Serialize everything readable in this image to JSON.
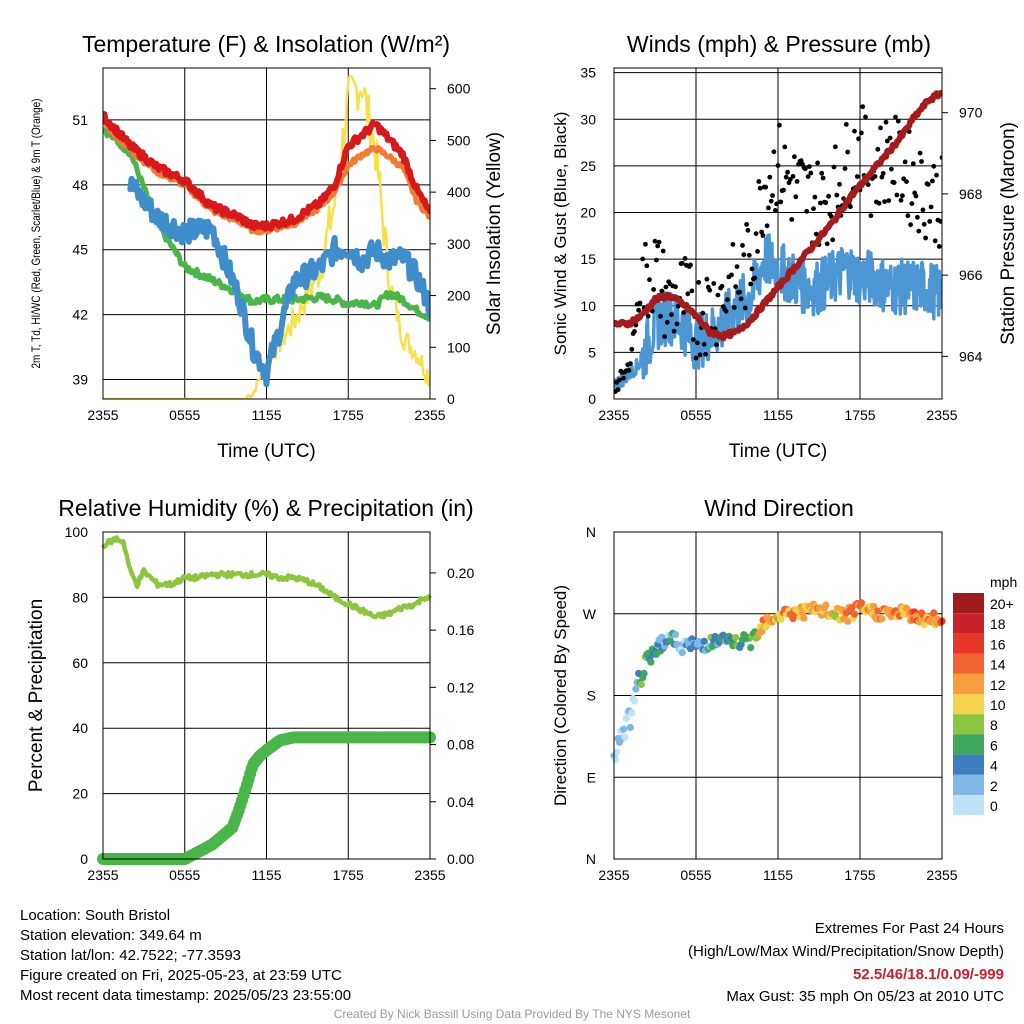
{
  "chart_data": [
    {
      "type": "line",
      "title": "Temperature (F) & Insolation (W/m²)",
      "xlabel": "Time (UTC)",
      "ylabel_left": "2m T, Td, HI/WC (Red, Green, Scarlet/Blue) & 9m T (Orange)",
      "ylabel_right": "Solar Insolation (Yellow)",
      "x_ticks": [
        "2355",
        "0555",
        "1155",
        "1755",
        "2355"
      ],
      "y_ticks_left": [
        "39",
        "42",
        "45",
        "48",
        "51"
      ],
      "y_ticks_right": [
        "0",
        "100",
        "200",
        "300",
        "400",
        "500",
        "600"
      ],
      "ylim_left": [
        38.1,
        53.4
      ],
      "ylim_right": [
        0,
        640
      ],
      "grid": true,
      "colors": {
        "temp": "#d7191c",
        "temp9m": "#f47b34",
        "dewpoint": "#4ab548",
        "windchill": "#3f8ecb",
        "solar": "#f5e14a"
      },
      "x_hours": [
        0,
        2,
        4,
        6,
        8,
        10,
        11,
        12,
        14,
        16,
        17,
        18,
        19,
        20,
        21,
        22,
        23,
        24
      ],
      "series": [
        {
          "key": "temp",
          "values": [
            51.2,
            49.8,
            48.8,
            48.2,
            47.0,
            46.5,
            46.1,
            46.1,
            46.4,
            47.2,
            48.0,
            49.8,
            50.3,
            50.8,
            50.1,
            49.4,
            47.8,
            46.7
          ]
        },
        {
          "key": "temp9m",
          "values": [
            50.9,
            49.6,
            48.6,
            48.0,
            46.8,
            46.3,
            45.9,
            45.9,
            46.2,
            47.0,
            47.7,
            48.9,
            49.4,
            49.7,
            49.3,
            48.8,
            47.3,
            46.5
          ]
        },
        {
          "key": "dewpoint",
          "values": [
            50.6,
            49.5,
            46.2,
            44.2,
            43.6,
            43.0,
            42.6,
            42.7,
            42.7,
            42.8,
            42.7,
            42.5,
            42.6,
            42.4,
            43.0,
            42.7,
            42.2,
            41.9
          ]
        },
        {
          "key": "windchill",
          "values": [
            null,
            48.0,
            46.5,
            45.8,
            46.0,
            42.8,
            40.5,
            39.3,
            43.5,
            44.2,
            45.0,
            45.1,
            44.5,
            45.0,
            44.5,
            44.6,
            43.8,
            42.4
          ]
        },
        {
          "key": "solar",
          "values": [
            0,
            0,
            0,
            0,
            0,
            0,
            10,
            70,
            150,
            260,
            380,
            580,
            610,
            480,
            230,
            120,
            90,
            40
          ]
        }
      ]
    },
    {
      "type": "scatter",
      "title": "Winds (mph) & Pressure (mb)",
      "xlabel": "Time (UTC)",
      "ylabel_left": "Sonic Wind & Gust (Blue, Black)",
      "ylabel_right": "Station Pressure (Maroon)",
      "x_ticks": [
        "2355",
        "0555",
        "1155",
        "1755",
        "2355"
      ],
      "y_ticks_left": [
        "0",
        "5",
        "10",
        "15",
        "20",
        "25",
        "30",
        "35"
      ],
      "y_ticks_right": [
        "964",
        "966",
        "968",
        "970"
      ],
      "ylim_left": [
        0,
        35.5
      ],
      "ylim_right": [
        962.95,
        971.1
      ],
      "grid": true,
      "colors": {
        "wind": "#4c96d4",
        "gust": "#000000",
        "pressure": "#a61c1c"
      },
      "x_hours": [
        0,
        1,
        2,
        3,
        4,
        5,
        6,
        7,
        8,
        9,
        10,
        11,
        12,
        13,
        14,
        15,
        16,
        17,
        18,
        19,
        20,
        21,
        22,
        23,
        24
      ],
      "series": [
        {
          "key": "wind",
          "values": [
            1.5,
            2.5,
            4,
            8,
            9,
            8,
            6,
            7,
            8,
            10,
            11,
            15,
            14,
            13,
            12,
            12,
            13,
            14,
            13,
            13,
            12,
            12,
            12,
            12,
            11
          ]
        },
        {
          "key": "gust",
          "values": [
            1,
            3,
            12,
            14,
            10,
            11,
            9,
            10,
            11,
            12,
            15,
            23,
            25,
            23,
            22,
            21,
            22,
            25,
            27,
            24,
            26,
            25,
            23,
            22,
            21
          ]
        },
        {
          "key": "pressure",
          "values": [
            964.8,
            964.8,
            965.0,
            965.4,
            965.5,
            965.3,
            965.0,
            964.6,
            964.5,
            964.6,
            964.9,
            965.3,
            965.7,
            966.1,
            966.5,
            966.9,
            967.3,
            967.8,
            968.2,
            968.6,
            969.0,
            969.4,
            969.9,
            970.3,
            970.5
          ]
        }
      ]
    },
    {
      "type": "line",
      "title": "Relative Humidity (%) & Precipitation (in)",
      "xlabel": "",
      "ylabel_left": "Percent & Precipitation",
      "ylabel_right": "",
      "x_ticks": [
        "2355",
        "0555",
        "1155",
        "1755",
        "2355"
      ],
      "y_ticks_left": [
        "0",
        "20",
        "40",
        "60",
        "80",
        "100"
      ],
      "y_ticks_right": [
        "0.00",
        "0.04",
        "0.08",
        "0.12",
        "0.16",
        "0.20"
      ],
      "ylim_left": [
        0,
        100
      ],
      "ylim_right": [
        0,
        0.2286
      ],
      "grid": true,
      "colors": {
        "rh": "#8cc63f",
        "precip": "#4ab548"
      },
      "series": [
        {
          "key": "rh",
          "x_hours": [
            0,
            0.5,
            1,
            1.5,
            2,
            2.5,
            3,
            4,
            5,
            6,
            7,
            8,
            9,
            10,
            11,
            12,
            13,
            14,
            15,
            16,
            17,
            18,
            19,
            20,
            21,
            22,
            23,
            23.5,
            24
          ],
          "values": [
            96,
            97,
            98,
            97,
            88,
            84,
            88,
            84,
            84,
            86,
            86,
            87,
            87,
            87,
            87,
            87,
            86,
            86,
            85,
            83,
            80,
            78,
            76,
            74,
            75,
            77,
            78,
            80,
            80
          ]
        },
        {
          "key": "precip",
          "x_hours": [
            0,
            6,
            7,
            8,
            9,
            9.5,
            10,
            10.5,
            11,
            11.5,
            12,
            13,
            14,
            24
          ],
          "values": [
            0,
            0,
            0.005,
            0.01,
            0.018,
            0.022,
            0.035,
            0.05,
            0.066,
            0.072,
            0.076,
            0.083,
            0.085,
            0.085
          ]
        }
      ]
    },
    {
      "type": "scatter",
      "title": "Wind Direction",
      "xlabel": "",
      "ylabel": "Direction (Colored By Speed)",
      "x_ticks": [
        "2355",
        "0555",
        "1155",
        "1755",
        "2355"
      ],
      "y_ticks": [
        "N",
        "E",
        "S",
        "W",
        "N"
      ],
      "ylim": [
        0,
        360
      ],
      "grid": true,
      "colorbar_title": "mph",
      "colorbar_labels": [
        "20+",
        "18",
        "16",
        "14",
        "12",
        "10",
        "8",
        "6",
        "4",
        "2",
        "0"
      ],
      "colorbar_colors": [
        "#a01c1c",
        "#c82228",
        "#e8352a",
        "#f0622f",
        "#f89d3e",
        "#f2d34b",
        "#8cc63f",
        "#3ea85c",
        "#3f7fbf",
        "#7fb8e6",
        "#bde3f5"
      ],
      "x_hours": [
        0,
        0.5,
        1,
        1.5,
        2,
        3,
        4,
        5,
        6,
        7,
        8,
        9,
        10,
        11,
        12,
        13,
        14,
        15,
        16,
        17,
        18,
        19,
        20,
        21,
        22,
        23,
        24
      ],
      "directions": [
        112,
        128,
        150,
        168,
        205,
        232,
        244,
        235,
        235,
        238,
        240,
        238,
        240,
        262,
        268,
        271,
        272,
        274,
        270,
        268,
        275,
        272,
        270,
        271,
        268,
        264,
        262
      ],
      "speeds": [
        1,
        2,
        2,
        3,
        7,
        6,
        4,
        3,
        4,
        6,
        5,
        7,
        8,
        13,
        12,
        14,
        12,
        13,
        11,
        12,
        14,
        13,
        14,
        12,
        15,
        13,
        14
      ]
    }
  ],
  "footer": {
    "location": "Location: South Bristol",
    "elevation": "Station elevation: 349.64 m",
    "latlon": "Station lat/lon: 42.7522; -77.3593",
    "created": "Figure created on Fri, 2025-05-23, at 23:59 UTC",
    "recent": "Most recent data timestamp: 2025/05/23 23:55:00",
    "extremes_title": "Extremes For Past 24 Hours",
    "extremes_sub": "(High/Low/Max Wind/Precipitation/Snow Depth)",
    "extremes_values": "52.5/46/18.1/0.09/-999",
    "extremes_color": "#c8202a",
    "max_gust": "Max Gust: 35 mph On 05/23 at 2010 UTC",
    "credit": "Created By Nick Bassill Using Data Provided By The NYS Mesonet"
  }
}
